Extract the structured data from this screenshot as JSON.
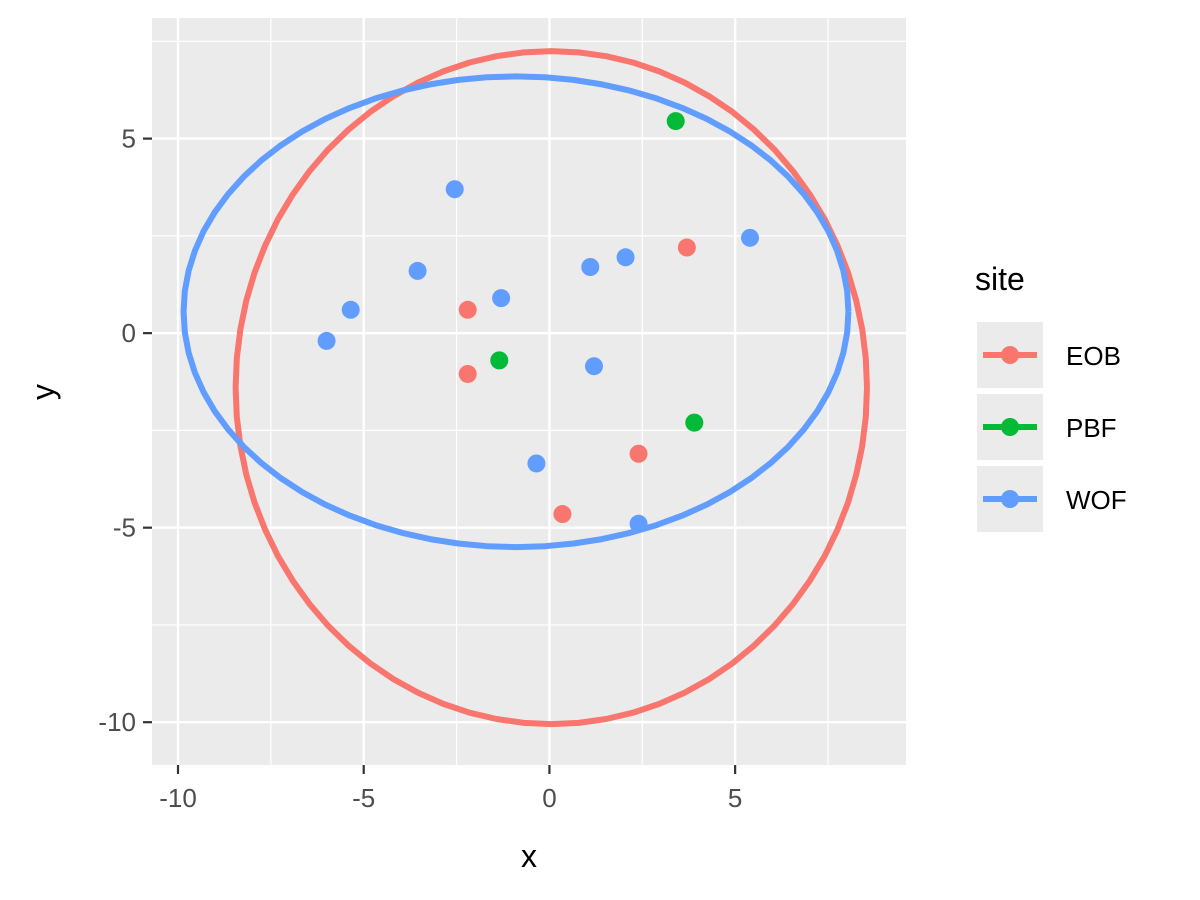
{
  "chart_data": {
    "type": "scatter",
    "xlabel": "x",
    "ylabel": "y",
    "xlim": [
      -10.7,
      9.6
    ],
    "ylim": [
      -11.1,
      8.1
    ],
    "x_ticks": [
      -10,
      -5,
      0,
      5
    ],
    "y_ticks": [
      -10,
      -5,
      0,
      5
    ],
    "x_tick_labels": [
      "-10",
      "-5",
      "0",
      "5"
    ],
    "y_tick_labels": [
      "-10",
      "-5",
      "0",
      "5"
    ],
    "grid": true,
    "legend": {
      "title": "site",
      "placement": "right",
      "entries": [
        "EOB",
        "PBF",
        "WOF"
      ]
    },
    "series": [
      {
        "name": "EOB",
        "color": "#F8766D",
        "points": [
          {
            "x": -2.2,
            "y": 0.6
          },
          {
            "x": -2.2,
            "y": -1.05
          },
          {
            "x": 3.7,
            "y": 2.2
          },
          {
            "x": 2.4,
            "y": -3.1
          },
          {
            "x": 0.35,
            "y": -4.65
          }
        ],
        "ellipse": {
          "cx": 0.05,
          "cy": -1.4,
          "rx": 8.5,
          "ry": 8.65,
          "cx_offset_top": 0.0
        }
      },
      {
        "name": "PBF",
        "color": "#00BA38",
        "points": [
          {
            "x": 3.4,
            "y": 5.45
          },
          {
            "x": -1.35,
            "y": -0.7
          },
          {
            "x": 3.9,
            "y": -2.3
          }
        ]
      },
      {
        "name": "WOF",
        "color": "#619CFF",
        "points": [
          {
            "x": -2.55,
            "y": 3.7
          },
          {
            "x": -3.55,
            "y": 1.6
          },
          {
            "x": -5.35,
            "y": 0.6
          },
          {
            "x": -6.0,
            "y": -0.2
          },
          {
            "x": -1.3,
            "y": 0.9
          },
          {
            "x": 1.1,
            "y": 1.7
          },
          {
            "x": 2.05,
            "y": 1.95
          },
          {
            "x": 5.4,
            "y": 2.45
          },
          {
            "x": 1.2,
            "y": -0.85
          },
          {
            "x": -0.35,
            "y": -3.35
          },
          {
            "x": 2.4,
            "y": -4.9
          }
        ],
        "ellipse": {
          "cx": -0.9,
          "cy": 0.55,
          "rx": 8.95,
          "ry": 6.05
        }
      }
    ]
  }
}
